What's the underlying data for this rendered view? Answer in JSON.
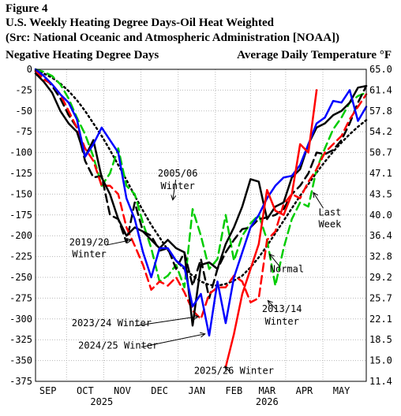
{
  "header": {
    "figure_label": "Figure 4",
    "title": "U.S. Weekly Heating Degree Days-Oil Heat Weighted",
    "subtitle": "(Src: National Oceanic and Atmospheric Administration [NOAA])",
    "left_axis_label": "Negative Heating Degree Days",
    "right_axis_label": "Average Daily Temperature °F"
  },
  "chart_data": {
    "type": "line",
    "xlim": [
      0,
      40
    ],
    "ylim": [
      -375,
      0
    ],
    "y2lim": [
      11.4,
      65.0
    ],
    "grid": true,
    "x_ticks": [
      {
        "x": 1.5,
        "label": "SEP"
      },
      {
        "x": 6,
        "label": "OCT"
      },
      {
        "x": 10.5,
        "label": "NOV"
      },
      {
        "x": 15,
        "label": "DEC"
      },
      {
        "x": 19.5,
        "label": "JAN"
      },
      {
        "x": 24,
        "label": "FEB"
      },
      {
        "x": 28,
        "label": "MAR"
      },
      {
        "x": 32.5,
        "label": "APR"
      },
      {
        "x": 37,
        "label": "MAY"
      }
    ],
    "x_year_labels": [
      {
        "x": 8,
        "label": "2025"
      },
      {
        "x": 28,
        "label": "2026"
      }
    ],
    "y_ticks": [
      "0",
      "-25",
      "-50",
      "-75",
      "-100",
      "-125",
      "-150",
      "-175",
      "-200",
      "-225",
      "-250",
      "-275",
      "-300",
      "-325",
      "-350",
      "-375"
    ],
    "y2_ticks": [
      "65.0",
      "61.4",
      "57.8",
      "54.2",
      "50.7",
      "47.1",
      "43.5",
      "40.0",
      "36.4",
      "32.8",
      "29.2",
      "25.7",
      "22.1",
      "18.5",
      "15.0",
      "11.4"
    ],
    "series": [
      {
        "name": "Normal",
        "color": "#000000",
        "dash": "2,4",
        "width": 2.5,
        "values": [
          -2,
          -5,
          -10,
          -17,
          -26,
          -37,
          -50,
          -65,
          -80,
          -97,
          -115,
          -133,
          -152,
          -170,
          -187,
          -202,
          -217,
          -230,
          -240,
          -248,
          -255,
          -259,
          -260,
          -258,
          -254,
          -248,
          -238,
          -226,
          -212,
          -197,
          -182,
          -167,
          -152,
          -138,
          -124,
          -111,
          -99,
          -88,
          -78,
          -69,
          -61
        ]
      },
      {
        "name": "2005/06 Winter",
        "color": "#00cc00",
        "dash": "10,6",
        "width": 2.5,
        "values": [
          0,
          -3,
          -8,
          -18,
          -35,
          -58,
          -78,
          -105,
          -140,
          -125,
          -95,
          -140,
          -150,
          -185,
          -215,
          -255,
          -248,
          -235,
          -262,
          -168,
          -200,
          -240,
          -228,
          -175,
          -230,
          -200,
          -185,
          -175,
          -205,
          -260,
          -215,
          -180,
          -160,
          -165,
          -120,
          -95,
          -72,
          -58,
          -40,
          -32,
          -28
        ]
      },
      {
        "name": "2019/20 Winter",
        "color": "#000000",
        "dash": "10,6",
        "width": 2.5,
        "values": [
          -2,
          -8,
          -20,
          -35,
          -55,
          -70,
          -110,
          -130,
          -128,
          -175,
          -180,
          -208,
          -160,
          -195,
          -200,
          -218,
          -215,
          -240,
          -220,
          -260,
          -228,
          -275,
          -240,
          -220,
          -205,
          -192,
          -190,
          -180,
          -178,
          -175,
          -168,
          -150,
          -140,
          -125,
          -100,
          -102,
          -97,
          -85,
          -65,
          -40,
          -20
        ]
      },
      {
        "name": "2013/14 Winter",
        "color": "#ff0000",
        "dash": "10,6",
        "width": 2.5,
        "values": [
          -2,
          -12,
          -18,
          -30,
          -50,
          -70,
          -95,
          -110,
          -140,
          -140,
          -150,
          -190,
          -212,
          -235,
          -265,
          -255,
          -260,
          -250,
          -268,
          -290,
          -300,
          -270,
          -262,
          -262,
          -248,
          -255,
          -280,
          -275,
          -205,
          -195,
          -162,
          -150,
          -155,
          -135,
          -120,
          -100,
          -90,
          -80,
          -60,
          -45,
          -30
        ]
      },
      {
        "name": "2023/24 Winter",
        "color": "#000000",
        "dash": "",
        "width": 2.5,
        "values": [
          -5,
          -15,
          -28,
          -50,
          -65,
          -75,
          -105,
          -85,
          -130,
          -150,
          -180,
          -200,
          -190,
          -195,
          -205,
          -215,
          -205,
          -215,
          -220,
          -308,
          -235,
          -232,
          -240,
          -210,
          -190,
          -165,
          -132,
          -135,
          -180,
          -165,
          -160,
          -130,
          -120,
          -90,
          -70,
          -65,
          -55,
          -50,
          -40,
          -22,
          -20
        ]
      },
      {
        "name": "2024/25 Winter",
        "color": "#0000ff",
        "dash": "",
        "width": 2.5,
        "values": [
          0,
          -8,
          -18,
          -30,
          -40,
          -60,
          -105,
          -90,
          -70,
          -85,
          -100,
          -155,
          -180,
          -220,
          -250,
          -215,
          -215,
          -230,
          -238,
          -285,
          -270,
          -320,
          -255,
          -305,
          -250,
          -220,
          -190,
          -175,
          -155,
          -140,
          -130,
          -128,
          -115,
          -90,
          -65,
          -58,
          -38,
          -40,
          -25,
          -62,
          -45
        ]
      },
      {
        "name": "2025/26 Winter",
        "color": "#ff0000",
        "dash": "",
        "width": 2.5,
        "values": [
          null,
          null,
          null,
          null,
          null,
          null,
          null,
          null,
          null,
          null,
          null,
          null,
          null,
          null,
          null,
          null,
          null,
          null,
          null,
          null,
          null,
          null,
          null,
          -358,
          -318,
          -270,
          -240,
          -210,
          -145,
          -170,
          -175,
          -150,
          -90,
          -100,
          -25,
          null,
          null,
          null,
          null,
          null,
          null
        ]
      }
    ],
    "annotations": [
      {
        "text": "2005/06",
        "ax": 17.2,
        "ay": -125,
        "tx": 16.6,
        "ty": -157
      },
      {
        "text": "Winter",
        "ax": 17.2,
        "ay": -140
      },
      {
        "text": "2019/20",
        "ax": 6.5,
        "ay": -208,
        "tx": 11.6,
        "ty": -205
      },
      {
        "text": "Winter",
        "ax": 6.5,
        "ay": -222
      },
      {
        "text": "Normal",
        "ax": 30.4,
        "ay": -240,
        "tx": 28.3,
        "ty": -222
      },
      {
        "text": "Last",
        "ax": 35.6,
        "ay": -172,
        "tx": 33.6,
        "ty": -148
      },
      {
        "text": "Week",
        "ax": 35.6,
        "ay": -186
      },
      {
        "text": "2013/14",
        "ax": 29.8,
        "ay": -288,
        "tx": 28.1,
        "ty": -278
      },
      {
        "text": "Winter",
        "ax": 29.8,
        "ay": -303
      },
      {
        "text": "2023/24 Winter",
        "ax": 9.2,
        "ay": -305,
        "tx": 19.7,
        "ty": -297
      },
      {
        "text": "2024/25 Winter",
        "ax": 10.0,
        "ay": -332,
        "tx": 20.5,
        "ty": -318
      },
      {
        "text": "2025/26 Winter",
        "ax": 24.0,
        "ay": -362,
        "tx": 22.9,
        "ty": -357
      }
    ]
  }
}
